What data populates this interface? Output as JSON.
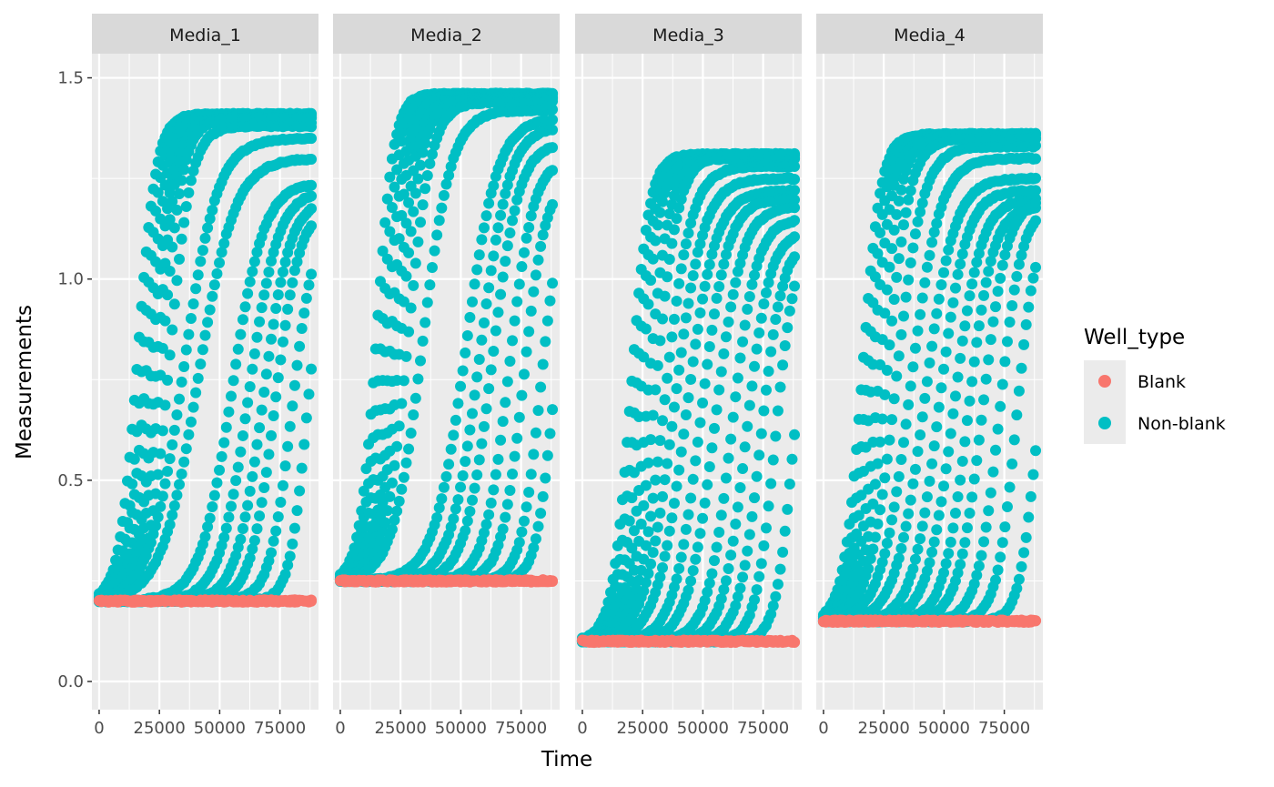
{
  "chart_data": {
    "type": "scatter",
    "facet_by": "Media",
    "xlabel": "Time",
    "ylabel": "Measurements",
    "xlim": [
      -3000,
      91000
    ],
    "ylim": [
      -0.07,
      1.56
    ],
    "x_ticks": [
      0,
      25000,
      50000,
      75000
    ],
    "x_tick_labels": [
      "0",
      "25000",
      "50000",
      "75000"
    ],
    "y_ticks": [
      0.0,
      0.5,
      1.0,
      1.5
    ],
    "y_tick_labels": [
      "0.0",
      "0.5",
      "1.0",
      "1.5"
    ],
    "grid": true,
    "legend": {
      "title": "Well_type",
      "position": "right",
      "entries": [
        {
          "label": "Blank",
          "color": "#F8766D"
        },
        {
          "label": "Non-blank",
          "color": "#00BFC4"
        }
      ]
    },
    "x_range": [
      0,
      88000
    ],
    "panels": [
      {
        "label": "Media_1",
        "baseline": 0.2,
        "curves": [
          {
            "midpoint": 16000,
            "plateau": 1.41,
            "rate": 3800
          },
          {
            "midpoint": 18000,
            "plateau": 1.4,
            "rate": 3800
          },
          {
            "midpoint": 20000,
            "plateau": 1.41,
            "rate": 4200
          },
          {
            "midpoint": 22000,
            "plateau": 1.39,
            "rate": 4200
          },
          {
            "midpoint": 24000,
            "plateau": 1.4,
            "rate": 4000
          },
          {
            "midpoint": 26000,
            "plateau": 1.4,
            "rate": 4300
          },
          {
            "midpoint": 29000,
            "plateau": 1.38,
            "rate": 4500
          },
          {
            "midpoint": 35000,
            "plateau": 1.35,
            "rate": 7000
          },
          {
            "midpoint": 41000,
            "plateau": 1.3,
            "rate": 7500
          },
          {
            "midpoint": 55000,
            "plateau": 1.24,
            "rate": 6500
          },
          {
            "midpoint": 62000,
            "plateau": 1.22,
            "rate": 6000
          },
          {
            "midpoint": 68000,
            "plateau": 1.2,
            "rate": 5500
          },
          {
            "midpoint": 73000,
            "plateau": 1.18,
            "rate": 5000
          },
          {
            "midpoint": 80000,
            "plateau": 1.15,
            "rate": 4500
          },
          {
            "midpoint": 86000,
            "plateau": 1.1,
            "rate": 3500
          }
        ]
      },
      {
        "label": "Media_2",
        "baseline": 0.25,
        "curves": [
          {
            "midpoint": 15000,
            "plateau": 1.46,
            "rate": 3500
          },
          {
            "midpoint": 17000,
            "plateau": 1.46,
            "rate": 3800
          },
          {
            "midpoint": 19000,
            "plateau": 1.45,
            "rate": 4000
          },
          {
            "midpoint": 21000,
            "plateau": 1.46,
            "rate": 4000
          },
          {
            "midpoint": 23000,
            "plateau": 1.45,
            "rate": 4200
          },
          {
            "midpoint": 25000,
            "plateau": 1.45,
            "rate": 4500
          },
          {
            "midpoint": 28000,
            "plateau": 1.44,
            "rate": 4800
          },
          {
            "midpoint": 34000,
            "plateau": 1.42,
            "rate": 6000
          },
          {
            "midpoint": 52000,
            "plateau": 1.4,
            "rate": 6500
          },
          {
            "midpoint": 58000,
            "plateau": 1.38,
            "rate": 6000
          },
          {
            "midpoint": 63000,
            "plateau": 1.34,
            "rate": 5500
          },
          {
            "midpoint": 70000,
            "plateau": 1.3,
            "rate": 5000
          },
          {
            "midpoint": 76000,
            "plateau": 1.25,
            "rate": 4500
          },
          {
            "midpoint": 83000,
            "plateau": 1.2,
            "rate": 4000
          },
          {
            "midpoint": 88000,
            "plateau": 1.1,
            "rate": 3500
          }
        ]
      },
      {
        "label": "Media_3",
        "baseline": 0.1,
        "curves": [
          {
            "midpoint": 20000,
            "plateau": 1.31,
            "rate": 3800
          },
          {
            "midpoint": 22000,
            "plateau": 1.31,
            "rate": 4000
          },
          {
            "midpoint": 24000,
            "plateau": 1.3,
            "rate": 4000
          },
          {
            "midpoint": 27000,
            "plateau": 1.3,
            "rate": 4500
          },
          {
            "midpoint": 30000,
            "plateau": 1.31,
            "rate": 4800
          },
          {
            "midpoint": 34000,
            "plateau": 1.28,
            "rate": 5500
          },
          {
            "midpoint": 38000,
            "plateau": 1.25,
            "rate": 6000
          },
          {
            "midpoint": 43000,
            "plateau": 1.22,
            "rate": 6000
          },
          {
            "midpoint": 49000,
            "plateau": 1.2,
            "rate": 5500
          },
          {
            "midpoint": 55000,
            "plateau": 1.18,
            "rate": 5500
          },
          {
            "midpoint": 62000,
            "plateau": 1.15,
            "rate": 5000
          },
          {
            "midpoint": 68000,
            "plateau": 1.12,
            "rate": 4800
          },
          {
            "midpoint": 74000,
            "plateau": 1.1,
            "rate": 4500
          },
          {
            "midpoint": 80000,
            "plateau": 1.1,
            "rate": 4000
          },
          {
            "midpoint": 87000,
            "plateau": 1.0,
            "rate": 3500
          }
        ]
      },
      {
        "label": "Media_4",
        "baseline": 0.15,
        "curves": [
          {
            "midpoint": 16000,
            "plateau": 1.36,
            "rate": 3800
          },
          {
            "midpoint": 18000,
            "plateau": 1.36,
            "rate": 4000
          },
          {
            "midpoint": 20000,
            "plateau": 1.35,
            "rate": 4200
          },
          {
            "midpoint": 23000,
            "plateau": 1.36,
            "rate": 4500
          },
          {
            "midpoint": 26000,
            "plateau": 1.35,
            "rate": 4800
          },
          {
            "midpoint": 30000,
            "plateau": 1.33,
            "rate": 5500
          },
          {
            "midpoint": 36000,
            "plateau": 1.3,
            "rate": 6000
          },
          {
            "midpoint": 42000,
            "plateau": 1.25,
            "rate": 6000
          },
          {
            "midpoint": 48000,
            "plateau": 1.22,
            "rate": 5500
          },
          {
            "midpoint": 54000,
            "plateau": 1.2,
            "rate": 5500
          },
          {
            "midpoint": 60000,
            "plateau": 1.18,
            "rate": 5000
          },
          {
            "midpoint": 66000,
            "plateau": 1.2,
            "rate": 5000
          },
          {
            "midpoint": 73000,
            "plateau": 1.18,
            "rate": 4500
          },
          {
            "midpoint": 80000,
            "plateau": 1.15,
            "rate": 4000
          },
          {
            "midpoint": 88000,
            "plateau": 1.0,
            "rate": 3500
          }
        ]
      }
    ]
  }
}
